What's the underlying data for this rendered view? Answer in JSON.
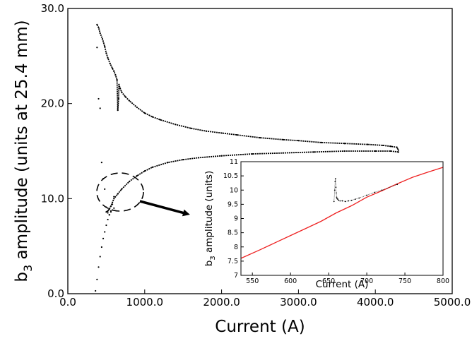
{
  "chart_data": [
    {
      "type": "scatter",
      "title": "",
      "xlabel": "Current (A)",
      "ylabel_main": "b",
      "ylabel_sub": "3",
      "ylabel_rest": " amplitude (units at 25.4 mm)",
      "xlim": [
        0,
        5000
      ],
      "ylim": [
        0,
        30
      ],
      "xticks": [
        0,
        1000,
        2000,
        3000,
        4000,
        5000
      ],
      "xtick_labels": [
        "0.0",
        "1000.0",
        "2000.0",
        "3000.0",
        "4000.0",
        "5000.0"
      ],
      "yticks": [
        0,
        10,
        20,
        30
      ],
      "ytick_labels": [
        "0.0",
        "10.0",
        "20.0",
        "30.0"
      ],
      "grid": false,
      "series": [
        {
          "color": "#000000",
          "x": [
            380,
            400,
            420,
            450,
            480,
            500,
            520,
            550,
            580,
            600,
            620,
            640,
            650,
            660,
            665,
            680,
            700,
            750,
            800,
            900,
            1000,
            1100,
            1200,
            1400,
            1600,
            1800,
            2000,
            2200,
            2500,
            2800,
            3000,
            3300,
            3600,
            3900,
            4100,
            4200,
            4280,
            4300
          ],
          "y": [
            28.3,
            28.0,
            27.4,
            26.8,
            26.0,
            25.3,
            24.8,
            24.2,
            23.7,
            23.4,
            23.0,
            22.5,
            19.3,
            20.5,
            22.0,
            21.6,
            21.2,
            20.7,
            20.3,
            19.6,
            19.0,
            18.6,
            18.3,
            17.8,
            17.4,
            17.1,
            16.9,
            16.7,
            16.4,
            16.2,
            16.1,
            15.9,
            15.8,
            15.7,
            15.6,
            15.5,
            15.4,
            15.1
          ]
        },
        {
          "color": "#000000",
          "x": [
            4300,
            4200,
            4000,
            3600,
            3200,
            2800,
            2400,
            2000,
            1700,
            1500,
            1300,
            1100,
            1000,
            900,
            800,
            700,
            650,
            600,
            580,
            560,
            540,
            520,
            500
          ],
          "y": [
            14.9,
            15.0,
            15.0,
            15.0,
            14.9,
            14.8,
            14.7,
            14.5,
            14.3,
            14.1,
            13.8,
            13.3,
            12.9,
            12.4,
            11.8,
            11.0,
            10.5,
            10.0,
            9.6,
            9.2,
            8.9,
            8.7,
            8.6
          ]
        },
        {
          "color": "#000000",
          "x": [
            360,
            380,
            400,
            420,
            440,
            460,
            480,
            500,
            520,
            540,
            560,
            580,
            600
          ],
          "y": [
            0.3,
            1.5,
            2.8,
            3.9,
            4.9,
            5.8,
            6.5,
            7.2,
            7.8,
            8.3,
            8.6,
            8.8,
            9.0
          ]
        },
        {
          "color": "#000000",
          "x": [
            380,
            400,
            420,
            440,
            460,
            480,
            500,
            520,
            540,
            560,
            580,
            600
          ],
          "y": [
            25.9,
            20.5,
            19.5,
            13.8,
            12.1,
            11.0,
            9.1,
            8.5,
            8.3,
            8.7,
            9.4,
            10.2
          ]
        }
      ]
    },
    {
      "type": "scatter",
      "title": "",
      "xlabel": "Current (A)",
      "ylabel_main": "b",
      "ylabel_sub": "3",
      "ylabel_rest": " amplitude (units)",
      "xlim": [
        535,
        800
      ],
      "ylim": [
        7,
        11
      ],
      "xticks": [
        550,
        600,
        650,
        700,
        750,
        800
      ],
      "xtick_labels": [
        "550",
        "600",
        "650",
        "700",
        "750",
        "800"
      ],
      "yticks": [
        7,
        7.5,
        8,
        8.5,
        9,
        9.5,
        10,
        10.5,
        11
      ],
      "ytick_labels": [
        "7",
        "7.5",
        "8",
        "8.5",
        "9",
        "9.5",
        "10",
        "10.5",
        "11"
      ],
      "grid": false,
      "series": [
        {
          "color": "#ee2222",
          "x": [
            535,
            560,
            580,
            600,
            620,
            640,
            660,
            680,
            700,
            720,
            740,
            760,
            780,
            800
          ],
          "y": [
            7.6,
            7.9,
            8.15,
            8.4,
            8.65,
            8.9,
            9.2,
            9.45,
            9.75,
            9.98,
            10.22,
            10.45,
            10.63,
            10.8
          ]
        },
        {
          "color": "#000000",
          "x": [
            657,
            658,
            658.5,
            659,
            659.5,
            660,
            660.5,
            661,
            662,
            663,
            665,
            668,
            672,
            676,
            680,
            685,
            690,
            700,
            710,
            720,
            740
          ],
          "y": [
            9.6,
            10.0,
            10.3,
            10.4,
            10.1,
            9.9,
            9.75,
            9.7,
            9.68,
            9.64,
            9.62,
            9.62,
            9.6,
            9.62,
            9.64,
            9.68,
            9.72,
            9.82,
            9.92,
            10.0,
            10.2
          ]
        }
      ]
    }
  ]
}
